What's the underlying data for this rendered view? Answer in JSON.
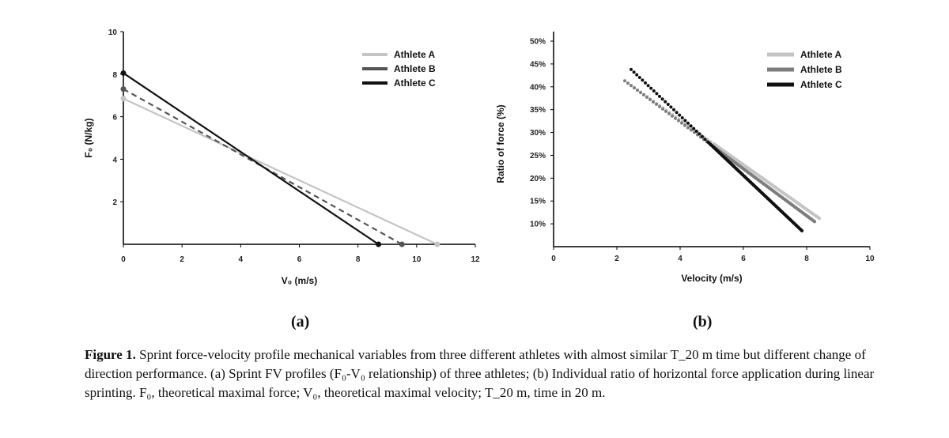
{
  "chart_data": [
    {
      "type": "line",
      "panel_label": "(a)",
      "xlabel": "V₀ (m/s)",
      "ylabel": "F₀ (N/kg)",
      "xlim": [
        0,
        12
      ],
      "ylim": [
        0,
        10
      ],
      "x_ticks": [
        0,
        2,
        4,
        6,
        8,
        10,
        12
      ],
      "y_ticks": [
        2,
        4,
        6,
        8,
        10
      ],
      "legend": "top-right",
      "grid": false,
      "series": [
        {
          "name": "Athlete A",
          "color": "#c4c4c4",
          "style": "solid",
          "x": [
            0,
            10.7
          ],
          "y": [
            6.85,
            0
          ]
        },
        {
          "name": "Athlete B",
          "color": "#555555",
          "style": "dashed",
          "x": [
            0,
            9.5
          ],
          "y": [
            7.3,
            0
          ]
        },
        {
          "name": "Athlete C",
          "color": "#111111",
          "style": "solid",
          "x": [
            0,
            8.7
          ],
          "y": [
            8.05,
            0
          ]
        }
      ]
    },
    {
      "type": "line",
      "panel_label": "(b)",
      "xlabel": "Velocity (m/s)",
      "ylabel": "Ratio of force (%)",
      "xlim": [
        0,
        10
      ],
      "ylim": [
        5,
        50
      ],
      "x_ticks": [
        0,
        2,
        4,
        6,
        8,
        10
      ],
      "y_ticks": [
        10,
        15,
        20,
        25,
        30,
        35,
        40,
        45,
        50
      ],
      "y_tick_labels": [
        "10%",
        "15%",
        "20%",
        "25%",
        "30%",
        "35%",
        "40%",
        "45%",
        "50%"
      ],
      "legend": "top-right",
      "grid": false,
      "series": [
        {
          "name": "Athlete A",
          "color": "#c4c4c4",
          "x": [
            2.35,
            8.4
          ],
          "y": [
            40.8,
            11.2
          ]
        },
        {
          "name": "Athlete B",
          "color": "#7d7d7d",
          "x": [
            2.25,
            8.25
          ],
          "y": [
            41.3,
            10.5
          ]
        },
        {
          "name": "Athlete C",
          "color": "#111111",
          "x": [
            2.45,
            7.85
          ],
          "y": [
            43.8,
            8.5
          ]
        }
      ]
    }
  ],
  "caption": {
    "label": "Figure 1.",
    "text": " Sprint force-velocity profile mechanical variables from three different athletes with almost similar T_20 m time but different change of direction performance. (a) Sprint FV profiles (F₀-V₀ relationship) of three athletes; (b) Individual ratio of horizontal force application during linear sprinting. F₀, theoretical maximal force; V₀, theoretical maximal velocity; T_20 m, time in 20 m."
  }
}
